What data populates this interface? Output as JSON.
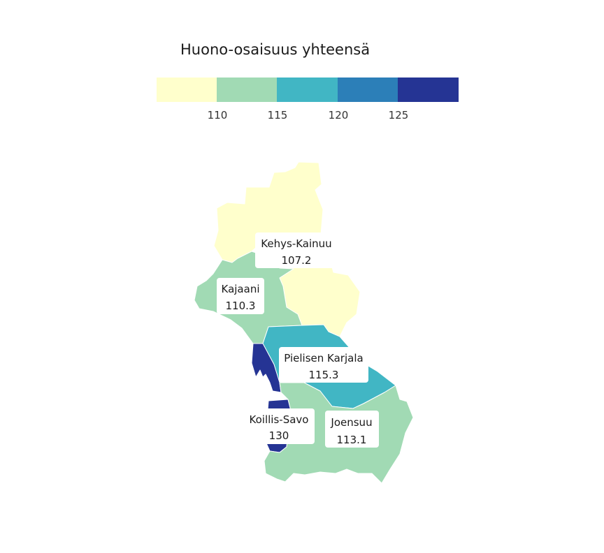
{
  "map": {
    "title": "Huono-osaisuus yhteensä",
    "legend": {
      "colors": [
        "#ffffcc",
        "#a1dab4",
        "#41b6c4",
        "#2c7fb8",
        "#253494"
      ],
      "ticks": [
        "110",
        "115",
        "120",
        "125"
      ]
    },
    "regions": [
      {
        "id": "kehys-kainuu",
        "name": "Kehys-Kainuu",
        "value": "107.2",
        "color": "#ffffcc"
      },
      {
        "id": "kajaani",
        "name": "Kajaani",
        "value": "110.3",
        "color": "#a1dab4"
      },
      {
        "id": "pielisen-karjala",
        "name": "Pielisen Karjala",
        "value": "115.3",
        "color": "#41b6c4"
      },
      {
        "id": "koillis-savo",
        "name": "Koillis-Savo",
        "value": "130",
        "color": "#253494"
      },
      {
        "id": "joensuu",
        "name": "Joensuu",
        "value": "113.1",
        "color": "#a1dab4"
      }
    ]
  }
}
